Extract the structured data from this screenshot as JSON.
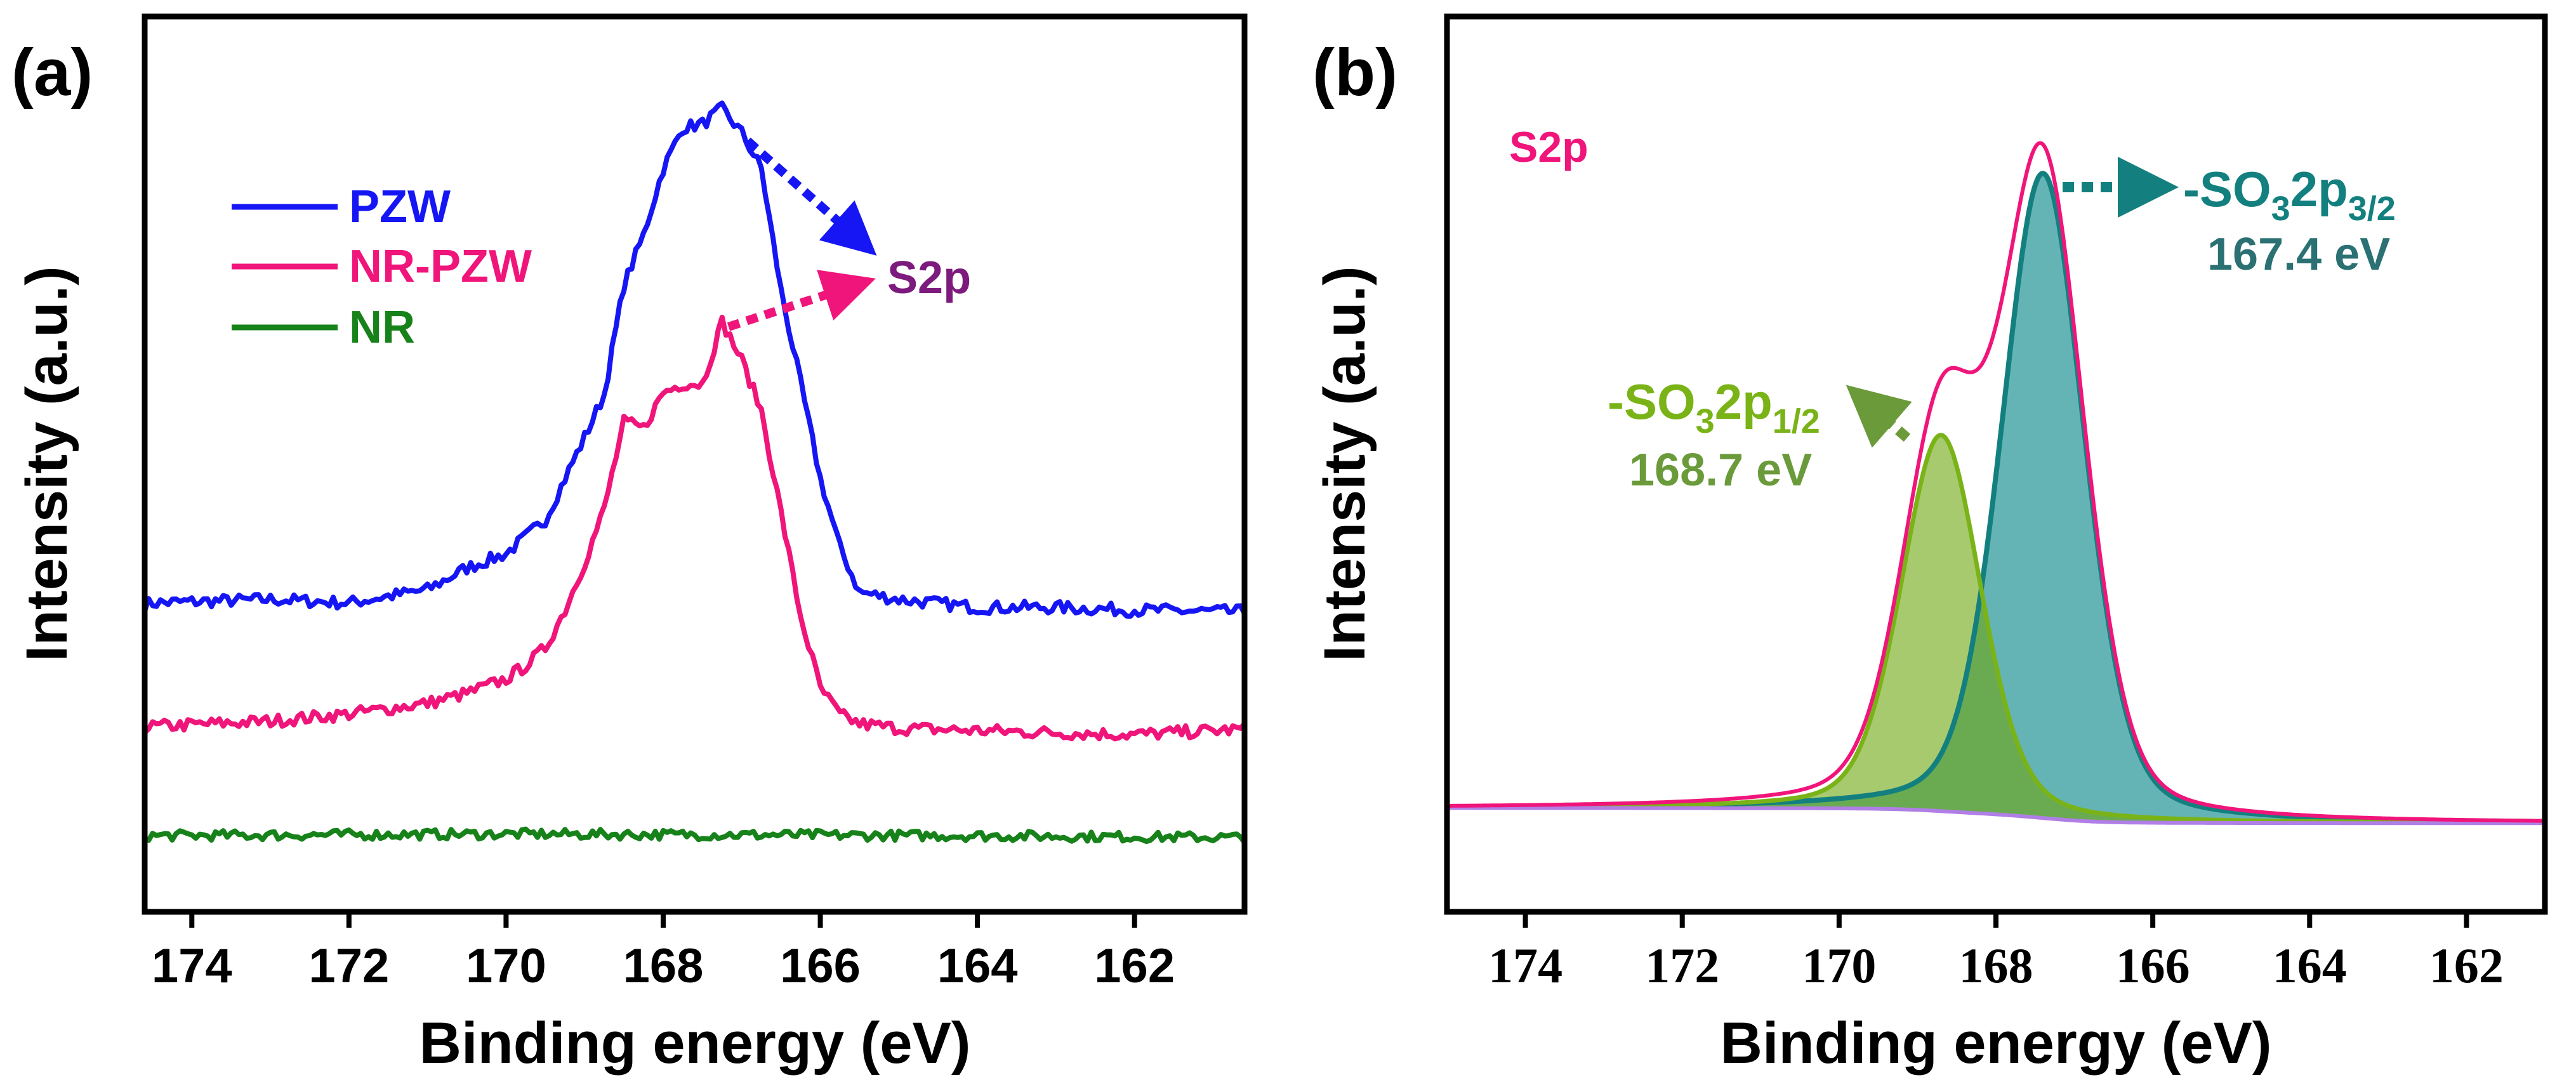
{
  "chart_data": [
    {
      "type": "line",
      "panel_label": "(a)",
      "xlabel": "Binding energy (eV)",
      "ylabel": "Intensity (a.u.)",
      "xlim": [
        174.6,
        160.6
      ],
      "ylim": [
        0,
        100
      ],
      "xticks": [
        "174",
        "172",
        "170",
        "168",
        "166",
        "164",
        "162"
      ],
      "grid": false,
      "legend_position": "top-left",
      "annotation": "S2p",
      "series": [
        {
          "name": "PZW",
          "color": "#1616f5",
          "x": [
            174.6,
            174.5,
            173,
            172,
            171,
            170.5,
            170,
            169.5,
            169,
            168.75,
            168.5,
            168.25,
            168,
            167.75,
            167.5,
            167.25,
            167,
            166.75,
            166.5,
            166.25,
            166,
            165.75,
            165.5,
            165,
            164,
            163,
            162,
            160.6
          ],
          "y": [
            34.3,
            34.5,
            34.9,
            34.5,
            36,
            38.4,
            40,
            43.8,
            53,
            57.8,
            70,
            75.6,
            83,
            87.6,
            88,
            89.7,
            87,
            83,
            69.4,
            59,
            48.4,
            40.7,
            35.7,
            34.9,
            34,
            34,
            33.7,
            33.5
          ]
        },
        {
          "name": "NR-PZW",
          "color": "#f0157a",
          "x": [
            174.6,
            174.5,
            173,
            172,
            171,
            170.5,
            170,
            169.75,
            169.5,
            169.25,
            169,
            168.75,
            168.5,
            168.25,
            168,
            167.75,
            167.5,
            167.25,
            167,
            166.75,
            166.5,
            166.25,
            166,
            165.75,
            165.5,
            165,
            163,
            162,
            160.6
          ],
          "y": [
            20.6,
            20.7,
            21.3,
            22.1,
            23.3,
            24.4,
            26,
            27.5,
            29.5,
            33.7,
            39,
            45,
            54.7,
            54,
            58,
            59,
            59,
            65.9,
            61.6,
            56,
            44.6,
            33,
            25,
            22,
            21,
            20.5,
            20,
            19.8,
            20.4
          ]
        },
        {
          "name": "NR",
          "color": "#17821a",
          "x": [
            174.6,
            170,
            167,
            164,
            160.6
          ],
          "y": [
            8.5,
            8.7,
            8.6,
            8.5,
            8.3
          ]
        }
      ]
    },
    {
      "type": "area",
      "panel_label": "(b)",
      "xlabel": "Binding energy (eV)",
      "ylabel": "Intensity (a.u.)",
      "xlim": [
        175,
        161
      ],
      "ylim": [
        0,
        100
      ],
      "xticks": [
        "174",
        "172",
        "170",
        "168",
        "166",
        "164",
        "162"
      ],
      "grid": false,
      "title_label": "S2p",
      "background": {
        "left": 11.6,
        "right": 9.9,
        "color": "#b07fe6"
      },
      "envelope_color": "#f0157a",
      "components": [
        {
          "name": "-SO3 2p3/2",
          "center": 167.4,
          "height": 72,
          "fwhm": 1.25,
          "line_color": "#13807f",
          "fill_color": "#65b4b5",
          "label": {
            "prefix": "-SO",
            "sub1": "3",
            "mid": "2p",
            "sub2": "3/2",
            "value": "167.4 eV",
            "color": "#13807f",
            "value_color": "#2b7072"
          }
        },
        {
          "name": "-SO3 2p1/2",
          "center": 168.7,
          "height": 42,
          "fwhm": 1.2,
          "line_color": "#7ab317",
          "fill_color": "#a8ca6f",
          "label": {
            "prefix": "-SO",
            "sub1": "3",
            "mid": "2p",
            "sub2": "1/2",
            "value": "168.7 eV",
            "color": "#7ab317",
            "value_color": "#6a9a3a"
          }
        }
      ],
      "overlap_color": "#6aab52"
    }
  ]
}
